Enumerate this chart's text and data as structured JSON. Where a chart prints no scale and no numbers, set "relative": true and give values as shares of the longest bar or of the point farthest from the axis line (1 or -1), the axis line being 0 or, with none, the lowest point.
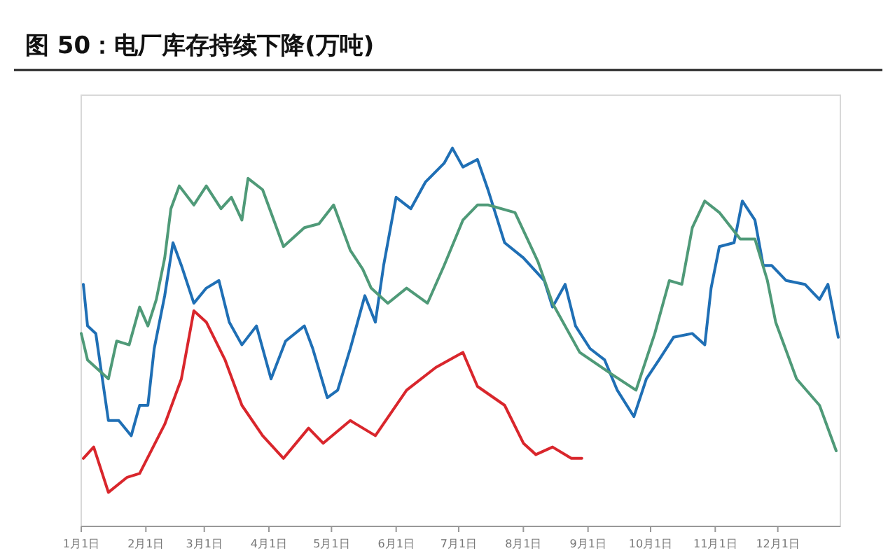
{
  "chart_data": {
    "type": "line",
    "title": "图 50：电厂库存持续下降(万吨)",
    "relative": true,
    "xlim": [
      "--01-01",
      "--12-31"
    ],
    "xticks": [
      {
        "value": "--01-01",
        "label": "1月1日"
      },
      {
        "value": "--02-01",
        "label": "2月1日"
      },
      {
        "value": "--03-01",
        "label": "3月1日"
      },
      {
        "value": "--04-01",
        "label": "4月1日"
      },
      {
        "value": "--05-01",
        "label": "5月1日"
      },
      {
        "value": "--06-01",
        "label": "6月1日"
      },
      {
        "value": "--07-01",
        "label": "7月1日"
      },
      {
        "value": "--08-01",
        "label": "8月1日"
      },
      {
        "value": "--09-01",
        "label": "9月1日"
      },
      {
        "value": "--10-01",
        "label": "10月1日"
      },
      {
        "value": "--11-01",
        "label": "11月1日"
      },
      {
        "value": "--12-01",
        "label": "12月1日"
      }
    ],
    "series": [
      {
        "color": "#1f6fb5",
        "x": [
          "--01-02",
          "--01-04",
          "--01-08",
          "--01-14",
          "--01-19",
          "--01-25",
          "--01-29",
          "--02-02",
          "--02-05",
          "--02-10",
          "--02-14",
          "--02-18",
          "--02-24",
          "--03-02",
          "--03-08",
          "--03-13",
          "--03-19",
          "--03-26",
          "--04-02",
          "--04-09",
          "--04-18",
          "--04-22",
          "--04-29",
          "--05-04",
          "--05-10",
          "--05-17",
          "--05-22",
          "--05-26",
          "--06-01",
          "--06-08",
          "--06-15",
          "--06-24",
          "--06-28",
          "--07-03",
          "--07-10",
          "--07-15",
          "--07-23",
          "--08-01",
          "--08-11",
          "--08-15",
          "--08-21",
          "--08-26",
          "--09-02",
          "--09-09",
          "--09-15",
          "--09-23",
          "--09-29",
          "--10-05",
          "--10-12",
          "--10-21",
          "--10-27",
          "--10-30",
          "--11-03",
          "--11-10",
          "--11-14",
          "--11-20",
          "--11-24",
          "--11-28",
          "--12-05",
          "--12-14",
          "--12-21",
          "--12-25",
          "--12-30"
        ],
        "values": [
          0.64,
          0.53,
          0.51,
          0.28,
          0.28,
          0.24,
          0.32,
          0.32,
          0.47,
          0.61,
          0.75,
          0.69,
          0.59,
          0.63,
          0.65,
          0.54,
          0.48,
          0.53,
          0.39,
          0.49,
          0.53,
          0.47,
          0.34,
          0.36,
          0.47,
          0.61,
          0.54,
          0.69,
          0.87,
          0.84,
          0.91,
          0.96,
          1,
          0.95,
          0.97,
          0.89,
          0.75,
          0.71,
          0.65,
          0.58,
          0.64,
          0.53,
          0.47,
          0.44,
          0.36,
          0.29,
          0.39,
          0.44,
          0.5,
          0.51,
          0.48,
          0.63,
          0.74,
          0.75,
          0.86,
          0.81,
          0.69,
          0.69,
          0.65,
          0.64,
          0.6,
          0.64,
          0.5
        ]
      },
      {
        "color": "#4f9a78",
        "x": [
          "--01-01",
          "--01-04",
          "--01-14",
          "--01-18",
          "--01-24",
          "--01-29",
          "--02-02",
          "--02-06",
          "--02-10",
          "--02-13",
          "--02-17",
          "--02-24",
          "--03-02",
          "--03-09",
          "--03-14",
          "--03-19",
          "--03-22",
          "--03-29",
          "--04-08",
          "--04-18",
          "--04-25",
          "--05-02",
          "--05-10",
          "--05-16",
          "--05-20",
          "--05-28",
          "--06-06",
          "--06-16",
          "--06-24",
          "--07-03",
          "--07-10",
          "--07-15",
          "--07-28",
          "--08-08",
          "--08-15",
          "--08-28",
          "--09-13",
          "--09-24",
          "--10-03",
          "--10-10",
          "--10-16",
          "--10-21",
          "--10-27",
          "--11-03",
          "--11-13",
          "--11-20",
          "--11-26",
          "--11-30",
          "--12-10",
          "--12-21",
          "--12-29"
        ],
        "values": [
          0.51,
          0.44,
          0.39,
          0.49,
          0.48,
          0.58,
          0.53,
          0.6,
          0.71,
          0.84,
          0.9,
          0.85,
          0.9,
          0.84,
          0.87,
          0.81,
          0.92,
          0.89,
          0.74,
          0.79,
          0.8,
          0.85,
          0.73,
          0.68,
          0.63,
          0.59,
          0.63,
          0.59,
          0.69,
          0.81,
          0.85,
          0.85,
          0.83,
          0.7,
          0.59,
          0.46,
          0.4,
          0.36,
          0.51,
          0.65,
          0.64,
          0.79,
          0.86,
          0.83,
          0.76,
          0.76,
          0.65,
          0.54,
          0.39,
          0.32,
          0.2
        ]
      },
      {
        "color": "#d9262c",
        "x": [
          "--01-02",
          "--01-07",
          "--01-14",
          "--01-23",
          "--01-29",
          "--02-10",
          "--02-18",
          "--02-24",
          "--03-02",
          "--03-11",
          "--03-19",
          "--03-29",
          "--04-08",
          "--04-20",
          "--04-27",
          "--05-10",
          "--05-22",
          "--06-06",
          "--06-20",
          "--07-03",
          "--07-10",
          "--07-23",
          "--08-01",
          "--08-07",
          "--08-15",
          "--08-24",
          "--08-29"
        ],
        "values": [
          0.18,
          0.21,
          0.09,
          0.13,
          0.14,
          0.27,
          0.39,
          0.57,
          0.54,
          0.44,
          0.32,
          0.24,
          0.18,
          0.26,
          0.22,
          0.28,
          0.24,
          0.36,
          0.42,
          0.46,
          0.37,
          0.32,
          0.22,
          0.19,
          0.21,
          0.18,
          0.18
        ]
      }
    ]
  }
}
